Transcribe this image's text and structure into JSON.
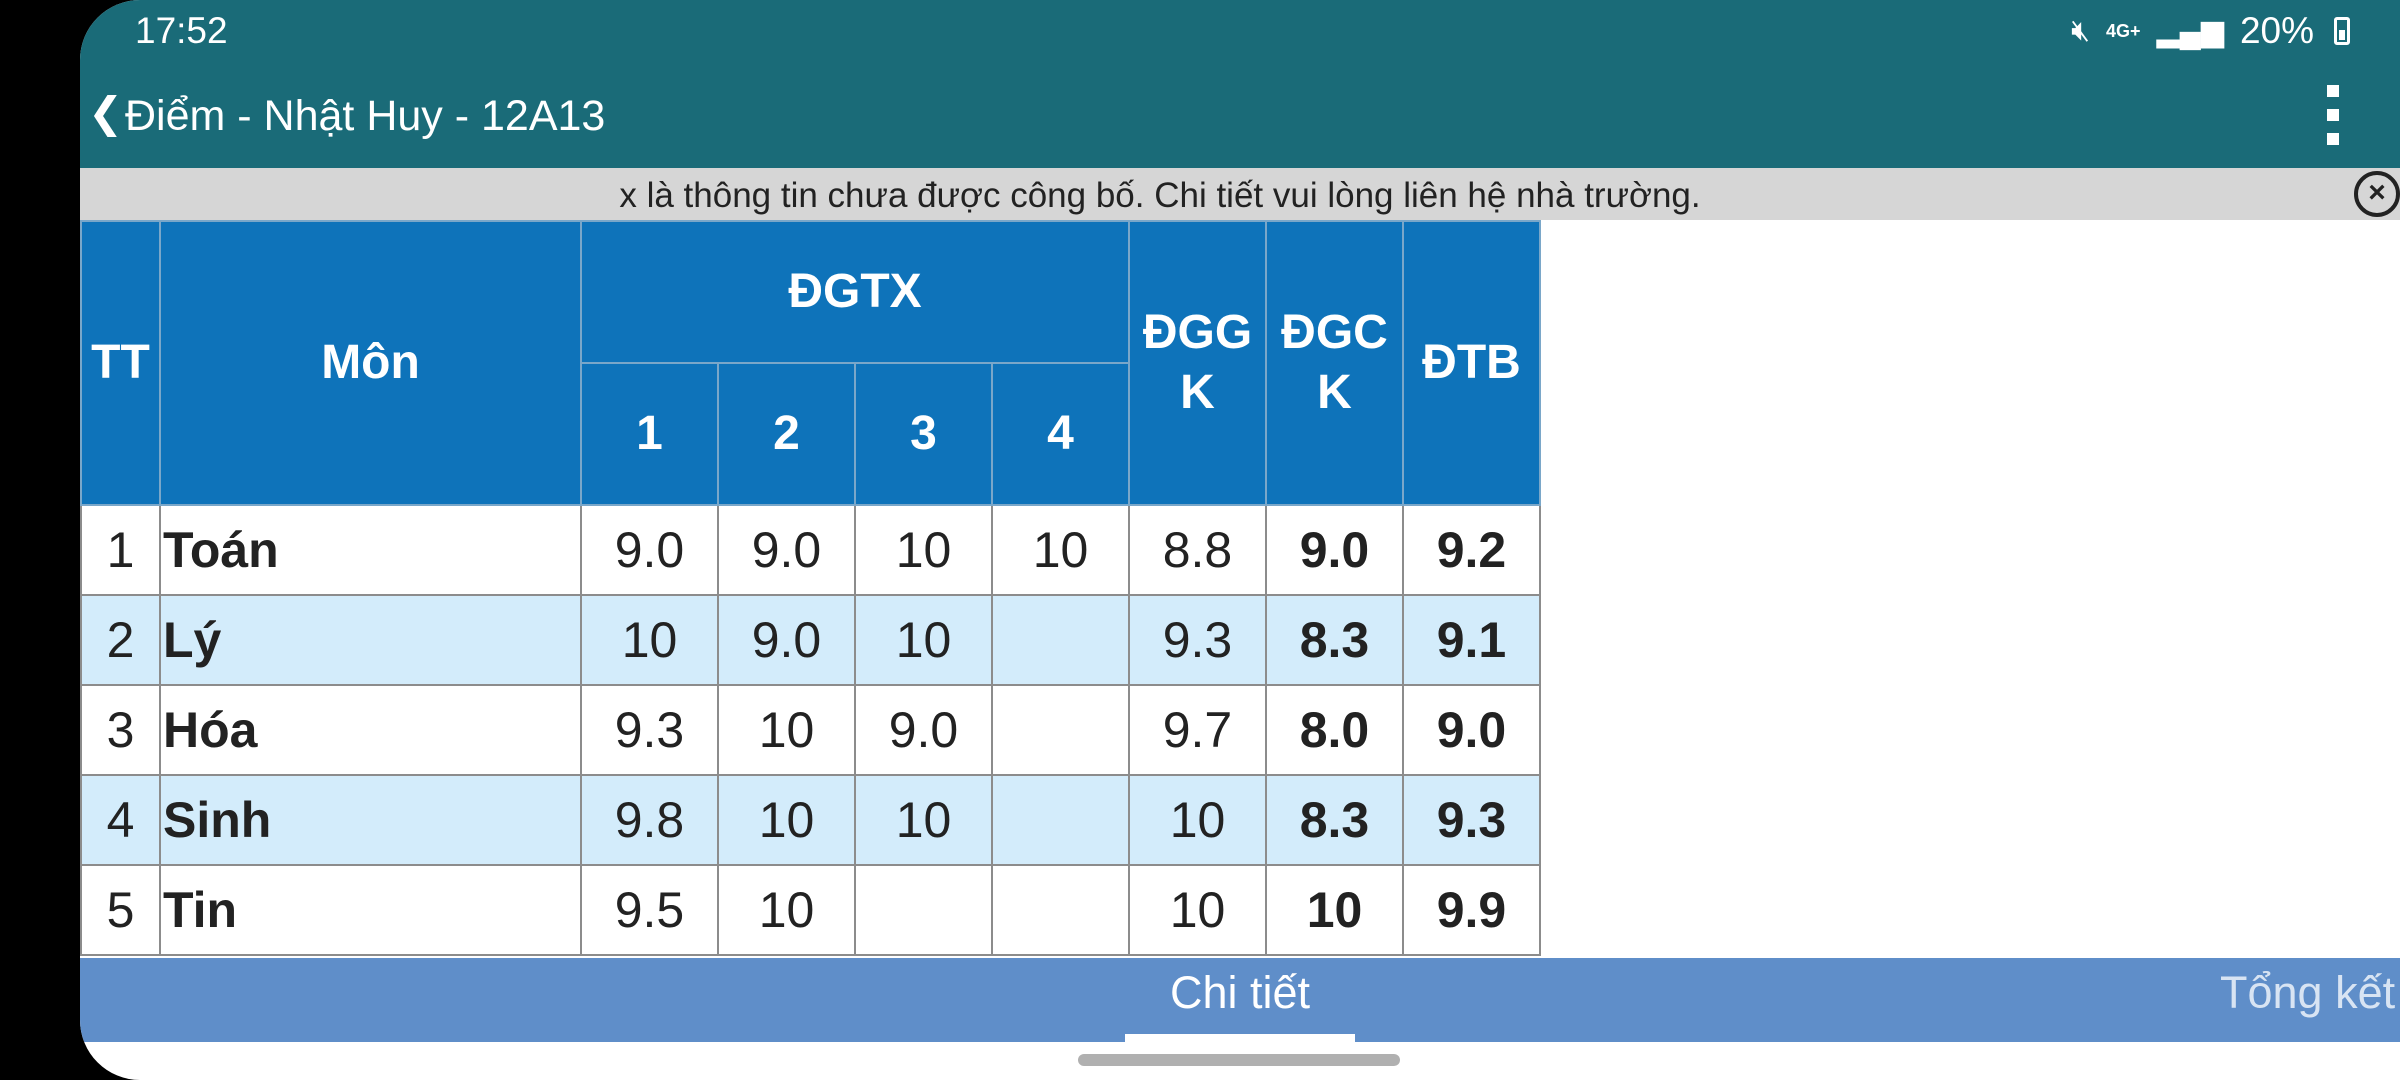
{
  "status_bar": {
    "time": "17:52",
    "network": "4G+",
    "battery": "20%",
    "icons": [
      "mute-icon",
      "signal-icon",
      "battery-icon"
    ]
  },
  "app_bar": {
    "title": "Điểm - Nhật Huy - 12A13",
    "back_icon": "chevron-left-icon",
    "menu_icon": "more-vert-icon"
  },
  "notice": {
    "text": "x là thông tin chưa được công bố. Chi tiết vui lòng liên hệ nhà trường."
  },
  "table": {
    "headers": {
      "tt": "TT",
      "subject": "Môn",
      "dgtx": "ĐGTX",
      "dgtx_cols": [
        "1",
        "2",
        "3",
        "4"
      ],
      "dggk": "ĐGG K",
      "dgck": "ĐGC K",
      "dtb": "ĐTB"
    },
    "rows": [
      {
        "tt": "1",
        "subject": "Toán",
        "tx1": "9.0",
        "tx2": "9.0",
        "tx3": "10",
        "tx4": "10",
        "dggk": "8.8",
        "dgck": "9.0",
        "dtb": "9.2"
      },
      {
        "tt": "2",
        "subject": "Lý",
        "tx1": "10",
        "tx2": "9.0",
        "tx3": "10",
        "tx4": "",
        "dggk": "9.3",
        "dgck": "8.3",
        "dtb": "9.1"
      },
      {
        "tt": "3",
        "subject": "Hóa",
        "tx1": "9.3",
        "tx2": "10",
        "tx3": "9.0",
        "tx4": "",
        "dggk": "9.7",
        "dgck": "8.0",
        "dtb": "9.0"
      },
      {
        "tt": "4",
        "subject": "Sinh",
        "tx1": "9.8",
        "tx2": "10",
        "tx3": "10",
        "tx4": "",
        "dggk": "10",
        "dgck": "8.3",
        "dtb": "9.3"
      },
      {
        "tt": "5",
        "subject": "Tin",
        "tx1": "9.5",
        "tx2": "10",
        "tx3": "",
        "tx4": "",
        "dggk": "10",
        "dgck": "10",
        "dtb": "9.9"
      }
    ]
  },
  "tabs": [
    {
      "label": "Chi tiết",
      "active": true
    },
    {
      "label": "Tổng kết",
      "active": false
    }
  ],
  "colors": {
    "app_bar": "#1a6b78",
    "table_header": "#0e73ba",
    "row_alt": "#d3ecfb",
    "tab_bar": "#5f8ec9"
  }
}
